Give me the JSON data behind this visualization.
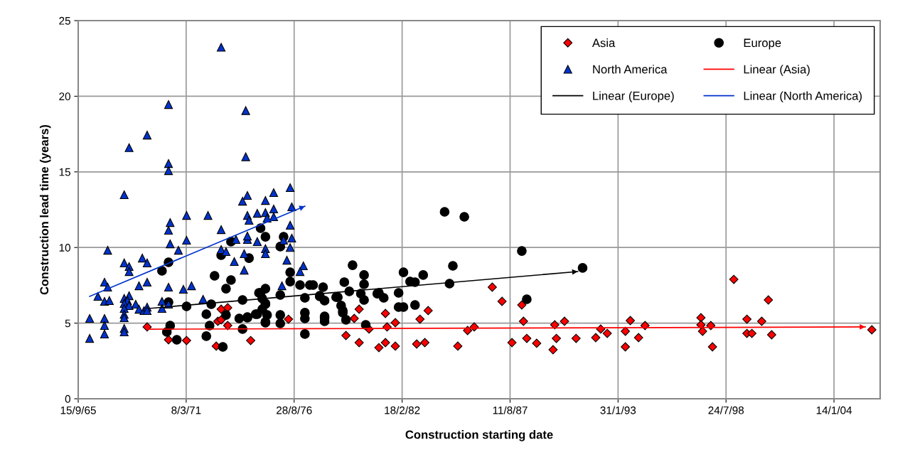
{
  "chart_data": {
    "type": "scatter",
    "xlabel": "Construction starting date",
    "ylabel": "Construction lead time (years)",
    "xlim": [
      "1965-09-15",
      "2006-05-18"
    ],
    "ylim": [
      0,
      25
    ],
    "yticks": [
      0,
      5,
      10,
      15,
      20,
      25
    ],
    "xticks": [
      {
        "value": "1965-09-15",
        "label": "15/9/65"
      },
      {
        "value": "1971-03-08",
        "label": "8/3/71"
      },
      {
        "value": "1976-08-28",
        "label": "28/8/76"
      },
      {
        "value": "1982-02-18",
        "label": "18/2/82"
      },
      {
        "value": "1987-08-11",
        "label": "11/8/87"
      },
      {
        "value": "1993-01-31",
        "label": "31/1/93"
      },
      {
        "value": "1998-07-24",
        "label": "24/7/98"
      },
      {
        "value": "2004-01-14",
        "label": "14/1/04"
      }
    ],
    "grid": true,
    "legend": "top right",
    "series": [
      {
        "name": "Asia",
        "marker": "diamond",
        "color": "#ff0000",
        "x": [
          "1969-03",
          "1970-04",
          "1971-03",
          "1972-09",
          "1972-12",
          "1973-04",
          "1972-10",
          "1972-12",
          "1973-04",
          "1974-06",
          "1976-05",
          "1979-12",
          "1979-09",
          "1980-06",
          "1979-04",
          "1979-12",
          "1981-04",
          "1981-05",
          "1981-10",
          "1980-12",
          "1981-04",
          "1981-10",
          "1982-11",
          "1983-04",
          "1983-01",
          "1983-06",
          "1984-12",
          "1985-06",
          "1985-10",
          "1986-09",
          "1987-03",
          "1988-03",
          "1988-04",
          "1987-09",
          "1988-06",
          "1988-12",
          "1989-10",
          "1989-12",
          "1989-11",
          "1990-05",
          "1990-12",
          "1991-12",
          "1992-03",
          "1992-07",
          "1993-09",
          "1993-06",
          "1994-02",
          "1994-06",
          "1993-06",
          "1997-04",
          "1997-04",
          "1997-05",
          "1997-10",
          "1997-11",
          "1998-12",
          "1999-08",
          "1999-08",
          "1999-11",
          "2000-05",
          "2000-09",
          "2000-11",
          "2005-12"
        ],
        "values": [
          4.75,
          3.9,
          3.85,
          3.48,
          5.92,
          6.02,
          5.12,
          5.22,
          4.84,
          3.85,
          5.26,
          5.92,
          5.31,
          4.61,
          4.18,
          3.71,
          5.64,
          4.75,
          5.03,
          3.38,
          3.71,
          3.48,
          3.62,
          3.71,
          5.26,
          5.83,
          3.48,
          4.51,
          4.75,
          7.38,
          6.44,
          6.2,
          5.12,
          3.71,
          3.99,
          3.67,
          3.24,
          3.99,
          4.89,
          5.12,
          3.99,
          4.04,
          4.61,
          4.32,
          5.17,
          4.46,
          4.04,
          4.84,
          3.43,
          5.36,
          4.89,
          4.46,
          4.84,
          3.43,
          7.89,
          5.26,
          4.32,
          4.32,
          5.12,
          6.53,
          4.23,
          4.56
        ]
      },
      {
        "name": "Europe",
        "marker": "circle",
        "color": "#000000",
        "x": [
          "1970-04",
          "1969-12",
          "1972-08",
          "1973-06",
          "1972-12",
          "1973-06",
          "1973-03",
          "1971-03",
          "1970-04",
          "1972-06",
          "1972-03",
          "1973-03",
          "1972-05",
          "1970-05",
          "1970-03",
          "1970-09",
          "1972-03",
          "1973-01",
          "1974-01",
          "1974-12",
          "1975-03",
          "1975-12",
          "1976-06",
          "1976-06",
          "1976-12",
          "1977-06",
          "1977-03",
          "1975-03",
          "1975-01",
          "1974-10",
          "1975-03",
          "1974-04",
          "1973-11",
          "1974-01",
          "1975-12",
          "1975-12",
          "1977-03",
          "1977-03",
          "1977-03",
          "1978-02",
          "1977-12",
          "1978-03",
          "1974-12",
          "1975-03",
          "1975-12",
          "1976-02",
          "1974-05",
          "1978-03",
          "1979-03",
          "1979-08",
          "1980-03",
          "1980-03",
          "1979-06",
          "1978-11",
          "1980-01",
          "1980-03",
          "1979-01",
          "1979-02",
          "1979-04",
          "1980-11",
          "1980-04",
          "1974-04",
          "1974-09",
          "1975-04",
          "1975-03",
          "1975-03",
          "1975-01",
          "1974-11",
          "1984-04",
          "1985-04",
          "1988-03",
          "1991-04",
          "1984-09",
          "1984-07",
          "1982-03",
          "1983-03",
          "1982-07",
          "1982-10",
          "1977-08",
          "1977-12",
          "1978-10",
          "1980-12",
          "1981-03",
          "1981-12",
          "1981-12",
          "1982-03",
          "1982-10",
          "1979-02",
          "1978-03",
          "1978-03",
          "1988-06"
        ],
        "values": [
          9.02,
          8.46,
          8.13,
          10.39,
          9.49,
          7.85,
          7.28,
          6.11,
          6.39,
          6.25,
          5.59,
          5.54,
          4.84,
          4.84,
          4.42,
          3.9,
          4.14,
          3.43,
          6.53,
          7.0,
          7.28,
          6.86,
          8.36,
          7.75,
          7.52,
          7.52,
          6.67,
          6.3,
          5.92,
          5.59,
          5.08,
          5.36,
          5.31,
          4.61,
          5.54,
          4.98,
          5.69,
          5.31,
          4.28,
          7.38,
          6.77,
          5.36,
          11.28,
          10.71,
          10.06,
          10.71,
          9.3,
          6.49,
          7.71,
          8.83,
          8.18,
          7.57,
          7.1,
          6.72,
          6.95,
          6.53,
          6.16,
          5.69,
          5.22,
          6.95,
          4.89,
          5.4,
          5.59,
          5.54,
          5.03,
          6.25,
          6.63,
          7.0,
          12.36,
          12.03,
          9.77,
          8.65,
          8.79,
          7.61,
          8.36,
          8.18,
          7.75,
          7.71,
          7.52,
          6.81,
          6.72,
          7.0,
          6.67,
          7.0,
          6.06,
          6.06,
          6.2,
          5.83,
          5.45,
          5.12,
          6.58
        ]
      },
      {
        "name": "North America",
        "marker": "triangle",
        "color": "#0033cc",
        "x": [
          "1970-04",
          "1969-03",
          "1968-04",
          "1970-04",
          "1970-04",
          "1968-01",
          "1971-03",
          "1972-04",
          "1970-05",
          "1970-04",
          "1972-12",
          "1971-03",
          "1970-05",
          "1970-10",
          "1967-03",
          "1972-12",
          "1973-03",
          "1968-12",
          "1969-03",
          "1968-01",
          "1968-04",
          "1968-04",
          "1967-01",
          "1967-03",
          "1968-10",
          "1969-03",
          "1970-04",
          "1971-01",
          "1971-06",
          "1966-09",
          "1967-01",
          "1967-04",
          "1968-01",
          "1968-04",
          "1968-03",
          "1968-01",
          "1968-04",
          "1968-08",
          "1968-10",
          "1969-01",
          "1969-03",
          "1969-03",
          "1969-12",
          "1970-04",
          "1969-12",
          "1968-01",
          "1968-01",
          "1968-01",
          "1966-04",
          "1967-01",
          "1967-01",
          "1968-01",
          "1968-01",
          "1967-01",
          "1966-04",
          "1972-01",
          "1972-12",
          "1974-03",
          "1974-03",
          "1974-04",
          "1974-01",
          "1975-03",
          "1975-08",
          "1976-06",
          "1975-08",
          "1976-07",
          "1974-10",
          "1974-04",
          "1975-03",
          "1974-05",
          "1975-08",
          "1975-04",
          "1976-06",
          "1973-09",
          "1974-04",
          "1974-04",
          "1974-10",
          "1976-02",
          "1976-07",
          "1976-06",
          "1975-03",
          "1975-03",
          "1974-02",
          "1973-08",
          "1974-02",
          "1976-04",
          "1977-02",
          "1976-12",
          "1976-01"
        ],
        "values": [
          19.45,
          17.43,
          16.6,
          15.55,
          15.08,
          13.49,
          12.12,
          12.12,
          11.65,
          11.14,
          11.18,
          10.48,
          10.24,
          9.82,
          9.82,
          9.87,
          9.73,
          9.3,
          8.98,
          8.98,
          8.74,
          8.41,
          7.71,
          7.38,
          7.47,
          7.71,
          7.38,
          7.24,
          7.47,
          6.77,
          6.44,
          6.49,
          6.63,
          6.81,
          6.49,
          6.3,
          6.16,
          6.25,
          5.92,
          5.83,
          6.06,
          5.83,
          6.44,
          6.25,
          5.97,
          5.97,
          5.59,
          5.36,
          5.31,
          5.31,
          4.84,
          4.65,
          4.42,
          4.28,
          3.99,
          6.58,
          23.24,
          19.05,
          16.0,
          13.44,
          13.06,
          13.11,
          13.63,
          13.96,
          12.55,
          12.69,
          12.26,
          12.12,
          12.31,
          11.8,
          12.03,
          11.94,
          11.47,
          10.53,
          10.53,
          10.76,
          10.39,
          10.48,
          10.62,
          10.0,
          9.92,
          9.59,
          9.59,
          9.07,
          8.5,
          9.16,
          8.79,
          8.41,
          7.47
        ]
      },
      {
        "name": "Linear (Asia)",
        "type": "line",
        "color": "#ff0000",
        "x": [
          "1969-03",
          "2005-08"
        ],
        "values": [
          4.6,
          4.75
        ]
      },
      {
        "name": "Linear (Europe)",
        "type": "line",
        "color": "#000000",
        "x": [
          "1969-04",
          "1991-01"
        ],
        "values": [
          5.97,
          8.41
        ]
      },
      {
        "name": "Linear (North America)",
        "type": "line",
        "color": "#0033cc",
        "x": [
          "1966-04",
          "1977-03"
        ],
        "values": [
          6.77,
          12.73
        ]
      }
    ]
  }
}
